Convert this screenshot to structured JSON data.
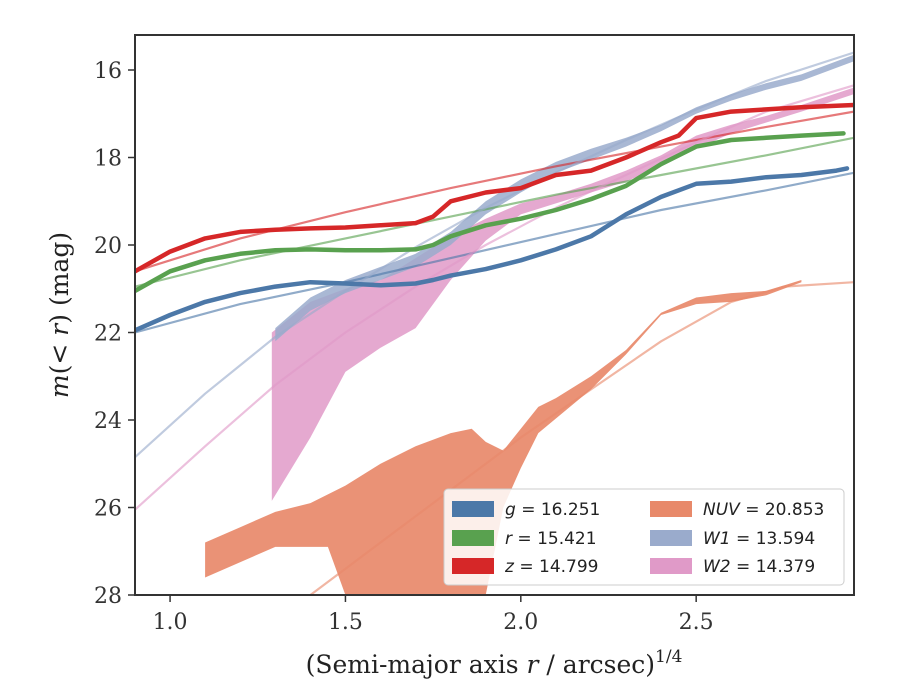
{
  "chart_data": {
    "type": "line",
    "xlabel": "(Semi-major axis r / arcsec)^1/4",
    "xlabel_parts": {
      "prefix": "(Semi-major axis ",
      "var": "r",
      "suffix": " / arcsec)",
      "exponent": "1/4"
    },
    "ylabel": "m(< r) (mag)",
    "ylabel_parts": {
      "m": "m",
      "open": "(",
      "lt": "<",
      "r": "r",
      "rest": ") (mag)"
    },
    "xlim": [
      0.9,
      2.95
    ],
    "ylim": [
      28,
      15.2
    ],
    "y_inverted": true,
    "x_ticks": [
      "1.0",
      "1.5",
      "2.0",
      "2.5"
    ],
    "y_ticks": [
      "16",
      "18",
      "20",
      "22",
      "24",
      "26",
      "28"
    ],
    "grid": false,
    "legend_position": "bottom-right",
    "series": [
      {
        "name": "g = 16.251",
        "legend": {
          "var": "g",
          "value": "16.251"
        },
        "color": "#4c78a8",
        "curve": [
          [
            0.9,
            21.95
          ],
          [
            1.0,
            21.6
          ],
          [
            1.1,
            21.3
          ],
          [
            1.2,
            21.1
          ],
          [
            1.3,
            20.95
          ],
          [
            1.4,
            20.85
          ],
          [
            1.5,
            20.88
          ],
          [
            1.6,
            20.92
          ],
          [
            1.7,
            20.88
          ],
          [
            1.75,
            20.8
          ],
          [
            1.8,
            20.7
          ],
          [
            1.9,
            20.55
          ],
          [
            2.0,
            20.35
          ],
          [
            2.1,
            20.1
          ],
          [
            2.2,
            19.8
          ],
          [
            2.3,
            19.3
          ],
          [
            2.4,
            18.9
          ],
          [
            2.5,
            18.6
          ],
          [
            2.6,
            18.55
          ],
          [
            2.7,
            18.45
          ],
          [
            2.8,
            18.4
          ],
          [
            2.9,
            18.3
          ],
          [
            2.93,
            18.25
          ]
        ],
        "fit": [
          [
            0.9,
            22.0
          ],
          [
            1.2,
            21.35
          ],
          [
            1.5,
            20.85
          ],
          [
            1.8,
            20.3
          ],
          [
            2.1,
            19.75
          ],
          [
            2.4,
            19.2
          ],
          [
            2.7,
            18.75
          ],
          [
            2.95,
            18.35
          ]
        ]
      },
      {
        "name": "r = 15.421",
        "legend": {
          "var": "r",
          "value": "15.421"
        },
        "color": "#59a14f",
        "curve": [
          [
            0.9,
            21.05
          ],
          [
            1.0,
            20.6
          ],
          [
            1.1,
            20.35
          ],
          [
            1.2,
            20.2
          ],
          [
            1.3,
            20.12
          ],
          [
            1.4,
            20.1
          ],
          [
            1.5,
            20.12
          ],
          [
            1.6,
            20.12
          ],
          [
            1.7,
            20.1
          ],
          [
            1.75,
            20.0
          ],
          [
            1.8,
            19.8
          ],
          [
            1.9,
            19.55
          ],
          [
            2.0,
            19.4
          ],
          [
            2.1,
            19.2
          ],
          [
            2.2,
            18.95
          ],
          [
            2.3,
            18.65
          ],
          [
            2.4,
            18.15
          ],
          [
            2.5,
            17.75
          ],
          [
            2.6,
            17.6
          ],
          [
            2.7,
            17.55
          ],
          [
            2.8,
            17.5
          ],
          [
            2.92,
            17.45
          ]
        ],
        "fit": [
          [
            0.9,
            20.95
          ],
          [
            1.2,
            20.35
          ],
          [
            1.5,
            19.85
          ],
          [
            1.8,
            19.35
          ],
          [
            2.1,
            18.85
          ],
          [
            2.4,
            18.4
          ],
          [
            2.7,
            17.95
          ],
          [
            2.95,
            17.55
          ]
        ]
      },
      {
        "name": "z = 14.799",
        "legend": {
          "var": "z",
          "value": "14.799"
        },
        "color": "#d62728",
        "curve": [
          [
            0.9,
            20.6
          ],
          [
            1.0,
            20.15
          ],
          [
            1.1,
            19.85
          ],
          [
            1.2,
            19.7
          ],
          [
            1.3,
            19.65
          ],
          [
            1.4,
            19.62
          ],
          [
            1.5,
            19.6
          ],
          [
            1.6,
            19.55
          ],
          [
            1.7,
            19.5
          ],
          [
            1.75,
            19.35
          ],
          [
            1.8,
            19.0
          ],
          [
            1.9,
            18.8
          ],
          [
            2.0,
            18.7
          ],
          [
            2.1,
            18.4
          ],
          [
            2.2,
            18.3
          ],
          [
            2.3,
            18.0
          ],
          [
            2.4,
            17.65
          ],
          [
            2.45,
            17.5
          ],
          [
            2.5,
            17.1
          ],
          [
            2.6,
            16.95
          ],
          [
            2.7,
            16.9
          ],
          [
            2.8,
            16.85
          ],
          [
            2.95,
            16.8
          ]
        ],
        "fit": [
          [
            0.9,
            20.6
          ],
          [
            1.2,
            19.85
          ],
          [
            1.5,
            19.25
          ],
          [
            1.8,
            18.7
          ],
          [
            2.1,
            18.2
          ],
          [
            2.4,
            17.75
          ],
          [
            2.7,
            17.3
          ],
          [
            2.95,
            16.95
          ]
        ]
      },
      {
        "name": "NUV = 20.853",
        "legend": {
          "var": "NUV",
          "value": "20.853"
        },
        "color": "#e8896a",
        "band_upper": [
          [
            1.1,
            26.8
          ],
          [
            1.2,
            26.45
          ],
          [
            1.3,
            26.1
          ],
          [
            1.4,
            25.9
          ],
          [
            1.5,
            25.5
          ],
          [
            1.6,
            25.0
          ],
          [
            1.7,
            24.6
          ],
          [
            1.8,
            24.3
          ],
          [
            1.86,
            24.2
          ],
          [
            1.9,
            24.5
          ],
          [
            1.95,
            24.7
          ],
          [
            2.0,
            24.2
          ],
          [
            2.05,
            23.7
          ],
          [
            2.1,
            23.5
          ],
          [
            2.2,
            23.0
          ],
          [
            2.3,
            22.4
          ],
          [
            2.4,
            21.55
          ],
          [
            2.5,
            21.2
          ],
          [
            2.6,
            21.1
          ],
          [
            2.7,
            21.05
          ],
          [
            2.8,
            20.8
          ]
        ],
        "band_lower": [
          [
            1.1,
            27.6
          ],
          [
            1.3,
            26.9
          ],
          [
            1.45,
            26.9
          ],
          [
            1.5,
            28.0
          ],
          [
            1.9,
            28.0
          ],
          [
            1.95,
            26.0
          ],
          [
            2.0,
            25.1
          ],
          [
            2.05,
            24.3
          ],
          [
            2.2,
            23.3
          ],
          [
            2.3,
            22.5
          ],
          [
            2.4,
            21.6
          ],
          [
            2.5,
            21.35
          ],
          [
            2.6,
            21.3
          ],
          [
            2.7,
            21.15
          ],
          [
            2.8,
            20.85
          ]
        ],
        "fit": [
          [
            1.4,
            28.0
          ],
          [
            1.6,
            26.8
          ],
          [
            1.8,
            25.6
          ],
          [
            2.0,
            24.4
          ],
          [
            2.2,
            23.3
          ],
          [
            2.4,
            22.2
          ],
          [
            2.6,
            21.3
          ],
          [
            2.75,
            20.95
          ],
          [
            2.95,
            20.85
          ]
        ]
      },
      {
        "name": "W1 = 13.594",
        "legend": {
          "var": "W1",
          "value": "13.594"
        },
        "color": "#9aabcc",
        "band_upper": [
          [
            1.3,
            21.9
          ],
          [
            1.4,
            21.2
          ],
          [
            1.5,
            20.8
          ],
          [
            1.6,
            20.5
          ],
          [
            1.7,
            20.2
          ],
          [
            1.8,
            19.7
          ],
          [
            1.9,
            19.0
          ],
          [
            2.0,
            18.5
          ],
          [
            2.1,
            18.1
          ],
          [
            2.2,
            17.8
          ],
          [
            2.3,
            17.55
          ],
          [
            2.4,
            17.25
          ],
          [
            2.5,
            16.85
          ],
          [
            2.6,
            16.55
          ],
          [
            2.7,
            16.3
          ],
          [
            2.8,
            16.1
          ],
          [
            2.95,
            15.65
          ]
        ],
        "band_lower": [
          [
            1.3,
            22.2
          ],
          [
            1.4,
            21.5
          ],
          [
            1.5,
            21.1
          ],
          [
            1.6,
            20.8
          ],
          [
            1.7,
            20.5
          ],
          [
            1.8,
            20.0
          ],
          [
            1.9,
            19.3
          ],
          [
            2.0,
            18.8
          ],
          [
            2.1,
            18.35
          ],
          [
            2.2,
            18.05
          ],
          [
            2.3,
            17.75
          ],
          [
            2.4,
            17.4
          ],
          [
            2.5,
            17.0
          ],
          [
            2.6,
            16.7
          ],
          [
            2.7,
            16.45
          ],
          [
            2.8,
            16.25
          ],
          [
            2.95,
            15.8
          ]
        ],
        "fit": [
          [
            0.9,
            24.85
          ],
          [
            1.1,
            23.4
          ],
          [
            1.3,
            22.1
          ],
          [
            1.5,
            21.05
          ],
          [
            1.7,
            20.05
          ],
          [
            1.9,
            19.15
          ],
          [
            2.1,
            18.35
          ],
          [
            2.3,
            17.6
          ],
          [
            2.5,
            16.9
          ],
          [
            2.7,
            16.25
          ],
          [
            2.95,
            15.6
          ]
        ]
      },
      {
        "name": "W2 = 14.379",
        "legend": {
          "var": "W2",
          "value": "14.379"
        },
        "color": "#e09ac8",
        "band_upper": [
          [
            1.29,
            22.0
          ],
          [
            1.4,
            21.3
          ],
          [
            1.5,
            21.0
          ],
          [
            1.6,
            20.8
          ],
          [
            1.7,
            20.3
          ],
          [
            1.8,
            19.8
          ],
          [
            1.9,
            19.4
          ],
          [
            2.0,
            19.05
          ],
          [
            2.1,
            18.85
          ],
          [
            2.2,
            18.6
          ],
          [
            2.3,
            18.3
          ],
          [
            2.4,
            17.95
          ],
          [
            2.5,
            17.5
          ],
          [
            2.6,
            17.25
          ],
          [
            2.7,
            17.05
          ],
          [
            2.8,
            16.8
          ],
          [
            2.95,
            16.4
          ]
        ],
        "band_lower": [
          [
            1.29,
            25.85
          ],
          [
            1.4,
            24.4
          ],
          [
            1.5,
            22.9
          ],
          [
            1.6,
            22.35
          ],
          [
            1.7,
            21.9
          ],
          [
            1.8,
            20.8
          ],
          [
            1.9,
            19.9
          ],
          [
            2.0,
            19.3
          ],
          [
            2.1,
            19.05
          ],
          [
            2.2,
            18.8
          ],
          [
            2.3,
            18.55
          ],
          [
            2.4,
            18.2
          ],
          [
            2.5,
            17.8
          ],
          [
            2.6,
            17.45
          ],
          [
            2.7,
            17.2
          ],
          [
            2.8,
            16.95
          ],
          [
            2.95,
            16.55
          ]
        ],
        "fit": [
          [
            0.9,
            26.05
          ],
          [
            1.1,
            24.6
          ],
          [
            1.3,
            23.2
          ],
          [
            1.5,
            22.0
          ],
          [
            1.7,
            20.95
          ],
          [
            1.9,
            20.0
          ],
          [
            2.1,
            19.15
          ],
          [
            2.3,
            18.4
          ],
          [
            2.5,
            17.65
          ],
          [
            2.7,
            16.95
          ],
          [
            2.95,
            16.35
          ]
        ]
      }
    ]
  }
}
